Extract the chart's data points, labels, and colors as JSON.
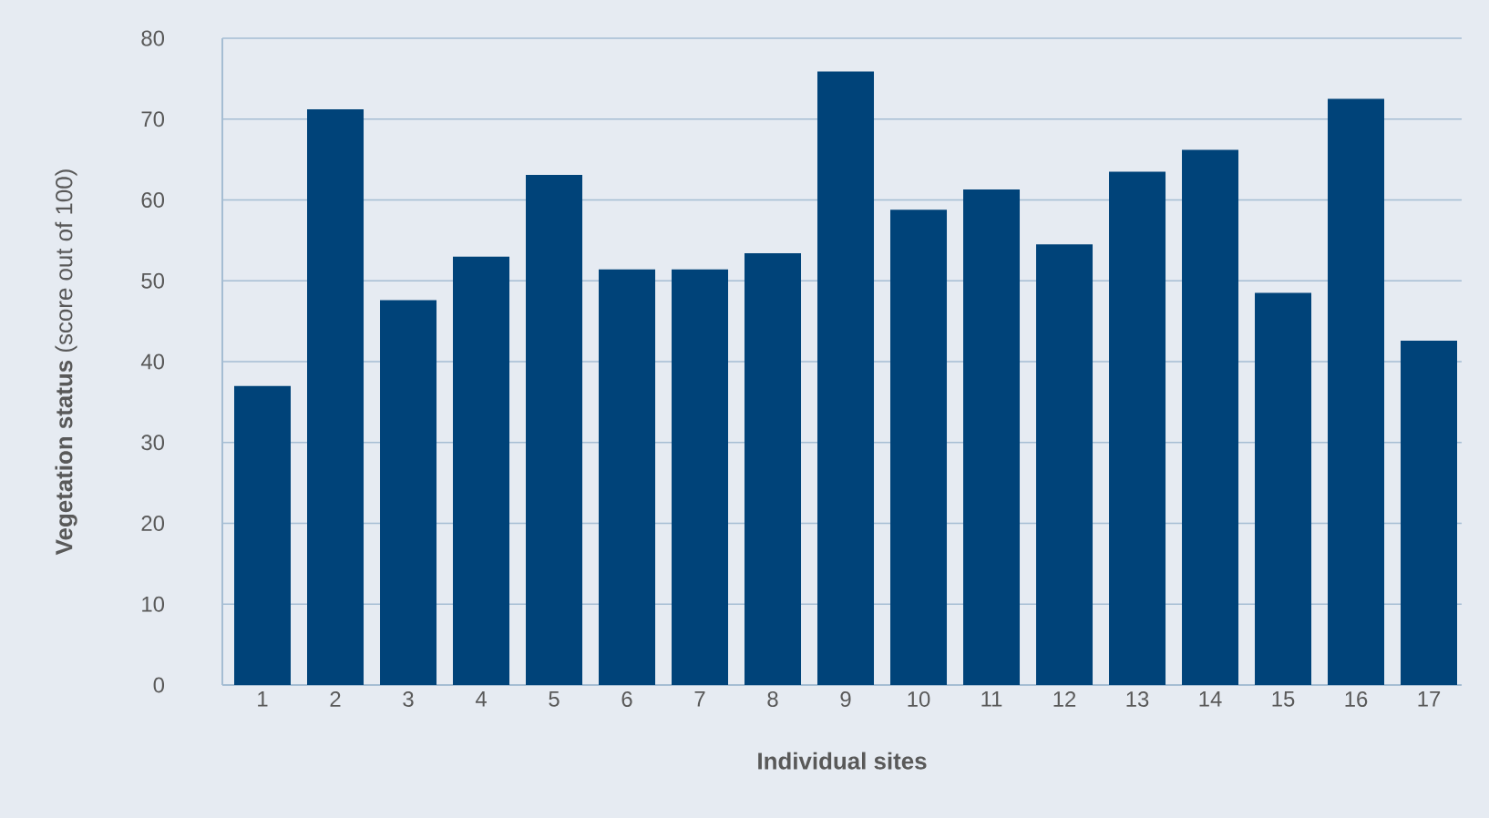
{
  "chart_data": {
    "type": "bar",
    "xlabel": "**Individual sites**",
    "ylabel": "**Vegetation status** (score out of 100)",
    "categories": [
      "1",
      "2",
      "3",
      "4",
      "5",
      "6",
      "7",
      "8",
      "9",
      "10",
      "11",
      "12",
      "13",
      "14",
      "15",
      "16",
      "17"
    ],
    "values": [
      37.0,
      71.2,
      47.6,
      53.0,
      63.1,
      51.4,
      51.4,
      53.4,
      75.9,
      58.8,
      61.3,
      54.5,
      63.5,
      66.2,
      48.5,
      72.5,
      42.6
    ],
    "color": "#004379",
    "ylim": [
      0,
      80
    ],
    "yticks": [
      0,
      10,
      20,
      30,
      40,
      50,
      60,
      70,
      80
    ],
    "grid": "y"
  }
}
